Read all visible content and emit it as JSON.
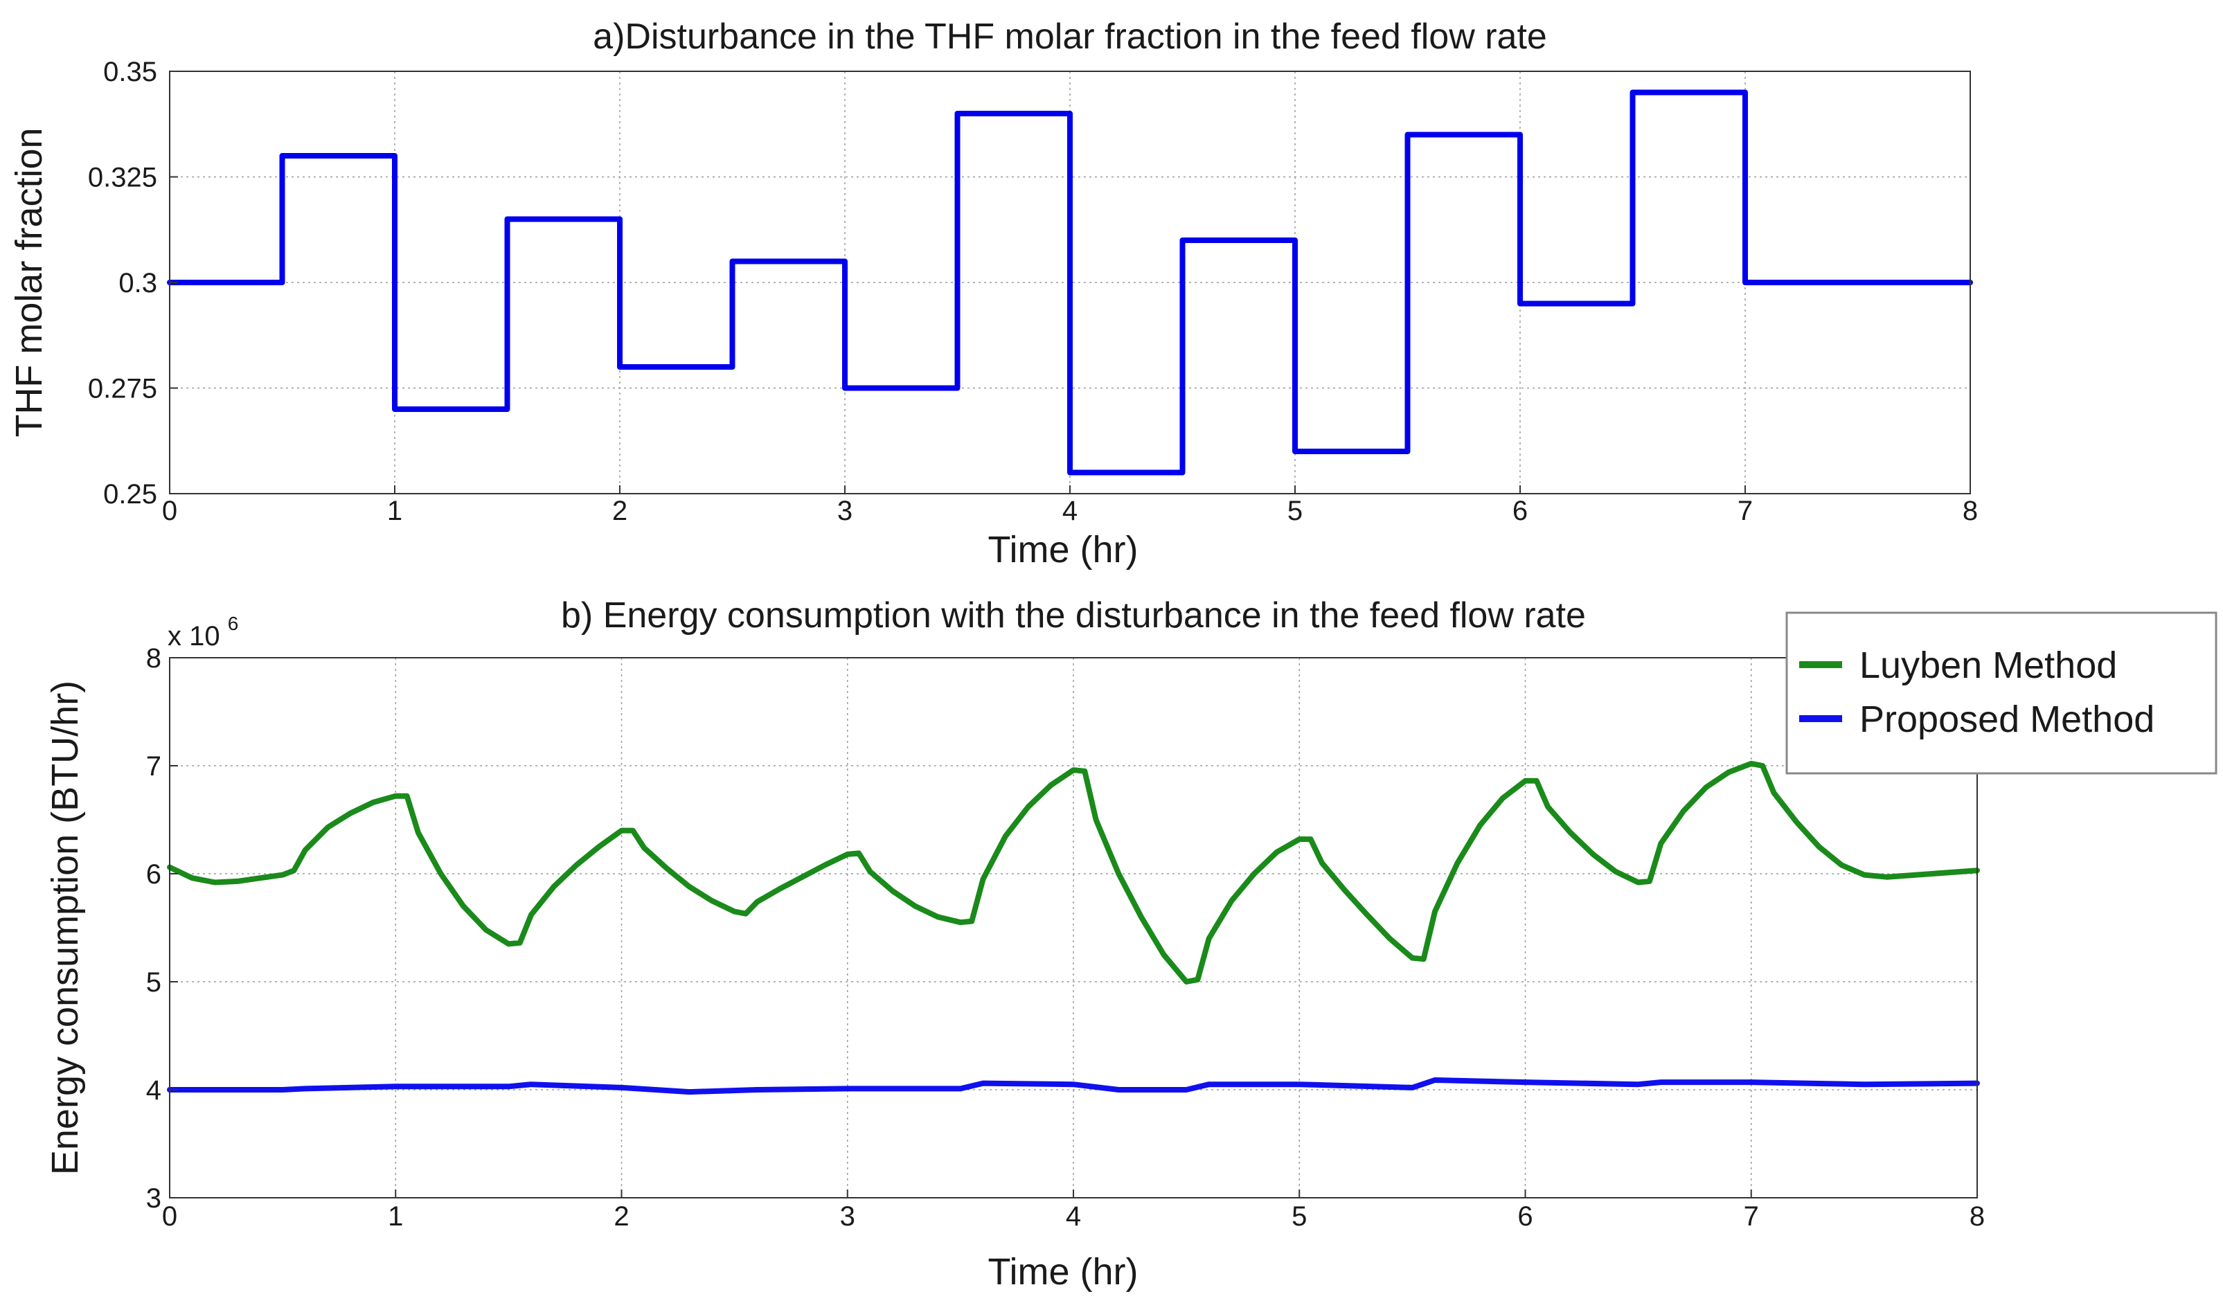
{
  "chart_data": [
    {
      "type": "line",
      "title": "a)Disturbance in the THF molar fraction in the feed flow rate",
      "xlabel": "Time (hr)",
      "ylabel": "THF molar fraction",
      "xlim": [
        0,
        8
      ],
      "ylim": [
        0.25,
        0.35
      ],
      "xticks": [
        0,
        1,
        2,
        3,
        4,
        5,
        6,
        7,
        8
      ],
      "xtick_labels": [
        "0",
        "1",
        "2",
        "3",
        "4",
        "5",
        "6",
        "7",
        "8"
      ],
      "yticks": [
        0.25,
        0.275,
        0.3,
        0.325,
        0.35
      ],
      "ytick_labels": [
        "0.25",
        "0.275",
        "0.3",
        "0.325",
        "0.35"
      ],
      "grid": true,
      "series": [
        {
          "name": "THF molar fraction",
          "color": "#0000ee",
          "step": true,
          "x": [
            0,
            0.5,
            1.0,
            1.5,
            2.0,
            2.5,
            3.0,
            3.5,
            4.0,
            4.5,
            5.0,
            5.5,
            6.0,
            6.5,
            7.0,
            8.0
          ],
          "y": [
            0.3,
            0.33,
            0.27,
            0.315,
            0.28,
            0.305,
            0.275,
            0.34,
            0.255,
            0.31,
            0.26,
            0.335,
            0.295,
            0.345,
            0.3,
            0.3
          ]
        }
      ]
    },
    {
      "type": "line",
      "title": "b) Energy consumption with the disturbance in the feed flow rate",
      "xlabel": "Time (hr)",
      "ylabel": "Energy consumption (BTU/hr)",
      "xlim": [
        0,
        8
      ],
      "ylim": [
        3,
        8
      ],
      "y_multiplier_base": "x 10",
      "y_multiplier_exp": "6",
      "xticks": [
        0,
        1,
        2,
        3,
        4,
        5,
        6,
        7,
        8
      ],
      "xtick_labels": [
        "0",
        "1",
        "2",
        "3",
        "4",
        "5",
        "6",
        "7",
        "8"
      ],
      "yticks": [
        3,
        4,
        5,
        6,
        7,
        8
      ],
      "ytick_labels": [
        "3",
        "4",
        "5",
        "6",
        "7",
        "8"
      ],
      "grid": true,
      "legend_position": "top-right, outside",
      "series": [
        {
          "name": "Luyben Method",
          "color": "#1a8a1a",
          "x": [
            0,
            0.1,
            0.2,
            0.3,
            0.4,
            0.5,
            0.55,
            0.6,
            0.7,
            0.8,
            0.9,
            1.0,
            1.05,
            1.1,
            1.2,
            1.3,
            1.4,
            1.5,
            1.55,
            1.6,
            1.7,
            1.8,
            1.9,
            2.0,
            2.05,
            2.1,
            2.2,
            2.3,
            2.4,
            2.5,
            2.55,
            2.6,
            2.7,
            2.8,
            2.9,
            3.0,
            3.05,
            3.1,
            3.2,
            3.3,
            3.4,
            3.5,
            3.55,
            3.6,
            3.7,
            3.8,
            3.9,
            4.0,
            4.05,
            4.1,
            4.2,
            4.3,
            4.4,
            4.5,
            4.55,
            4.6,
            4.7,
            4.8,
            4.9,
            5.0,
            5.05,
            5.1,
            5.2,
            5.3,
            5.4,
            5.5,
            5.55,
            5.6,
            5.7,
            5.8,
            5.9,
            6.0,
            6.05,
            6.1,
            6.2,
            6.3,
            6.4,
            6.5,
            6.55,
            6.6,
            6.7,
            6.8,
            6.9,
            7.0,
            7.05,
            7.1,
            7.2,
            7.3,
            7.4,
            7.5,
            7.6,
            7.8,
            8.0
          ],
          "y": [
            6.06,
            5.96,
            5.92,
            5.93,
            5.96,
            5.99,
            6.03,
            6.22,
            6.43,
            6.56,
            6.66,
            6.72,
            6.72,
            6.38,
            6.0,
            5.7,
            5.48,
            5.35,
            5.36,
            5.62,
            5.88,
            6.08,
            6.25,
            6.4,
            6.4,
            6.24,
            6.05,
            5.88,
            5.75,
            5.65,
            5.63,
            5.74,
            5.86,
            5.97,
            6.08,
            6.18,
            6.19,
            6.02,
            5.84,
            5.7,
            5.6,
            5.55,
            5.56,
            5.95,
            6.35,
            6.62,
            6.82,
            6.96,
            6.95,
            6.5,
            6.0,
            5.6,
            5.25,
            5.0,
            5.02,
            5.4,
            5.75,
            6.0,
            6.2,
            6.32,
            6.32,
            6.1,
            5.85,
            5.62,
            5.4,
            5.22,
            5.21,
            5.65,
            6.1,
            6.45,
            6.7,
            6.86,
            6.86,
            6.62,
            6.38,
            6.18,
            6.02,
            5.92,
            5.93,
            6.28,
            6.58,
            6.8,
            6.94,
            7.02,
            7.0,
            6.75,
            6.48,
            6.25,
            6.08,
            5.99,
            5.97,
            6.0,
            6.03
          ]
        },
        {
          "name": "Proposed Method",
          "color": "#1010ee",
          "x": [
            0,
            0.5,
            0.6,
            1.0,
            1.5,
            1.6,
            2.0,
            2.3,
            2.6,
            3.0,
            3.5,
            3.6,
            4.0,
            4.2,
            4.5,
            4.6,
            5.0,
            5.5,
            5.6,
            6.0,
            6.5,
            6.6,
            7.0,
            7.5,
            8.0
          ],
          "y": [
            4.0,
            4.0,
            4.01,
            4.03,
            4.03,
            4.05,
            4.02,
            3.98,
            4.0,
            4.01,
            4.01,
            4.06,
            4.05,
            4.0,
            4.0,
            4.05,
            4.05,
            4.02,
            4.09,
            4.07,
            4.05,
            4.07,
            4.07,
            4.05,
            4.06
          ]
        }
      ]
    }
  ]
}
